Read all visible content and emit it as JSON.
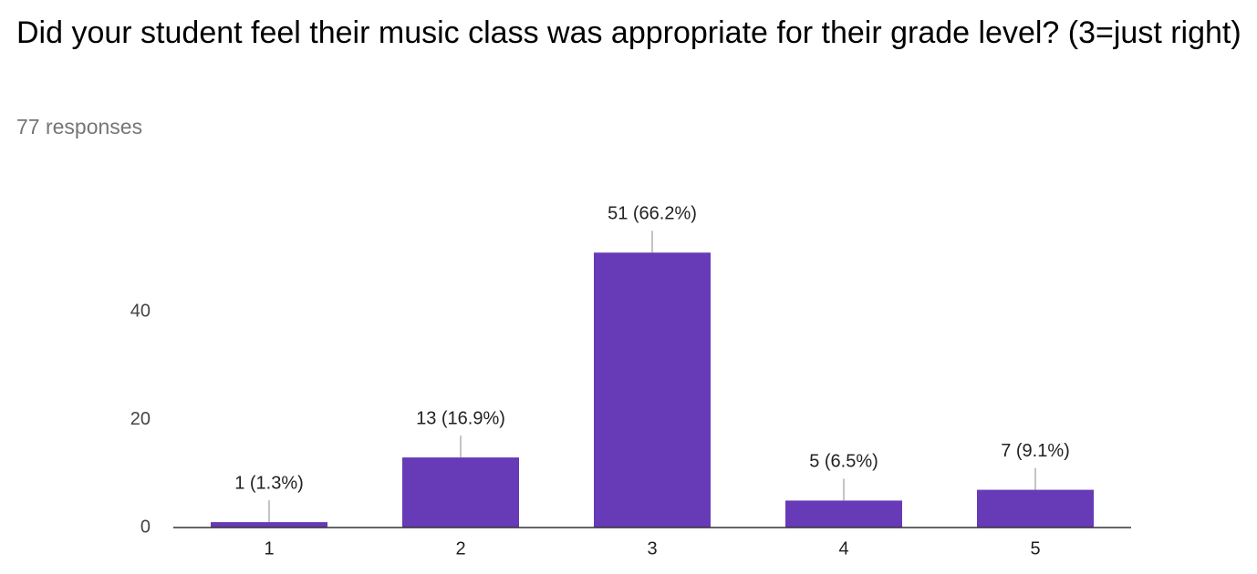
{
  "chart_data": {
    "type": "bar",
    "title": "Did your student feel their music class was appropriate for their grade level? (3=just right)",
    "subtitle": "77 responses",
    "categories": [
      "1",
      "2",
      "3",
      "4",
      "5"
    ],
    "values": [
      1,
      13,
      51,
      5,
      7
    ],
    "value_labels": [
      "1 (1.3%)",
      "13 (16.9%)",
      "51 (66.2%)",
      "5 (6.5%)",
      "7 (9.1%)"
    ],
    "color": "#673ab7",
    "ylim": [
      0,
      60
    ],
    "yticks": [
      0,
      20,
      40
    ],
    "grid": false
  }
}
